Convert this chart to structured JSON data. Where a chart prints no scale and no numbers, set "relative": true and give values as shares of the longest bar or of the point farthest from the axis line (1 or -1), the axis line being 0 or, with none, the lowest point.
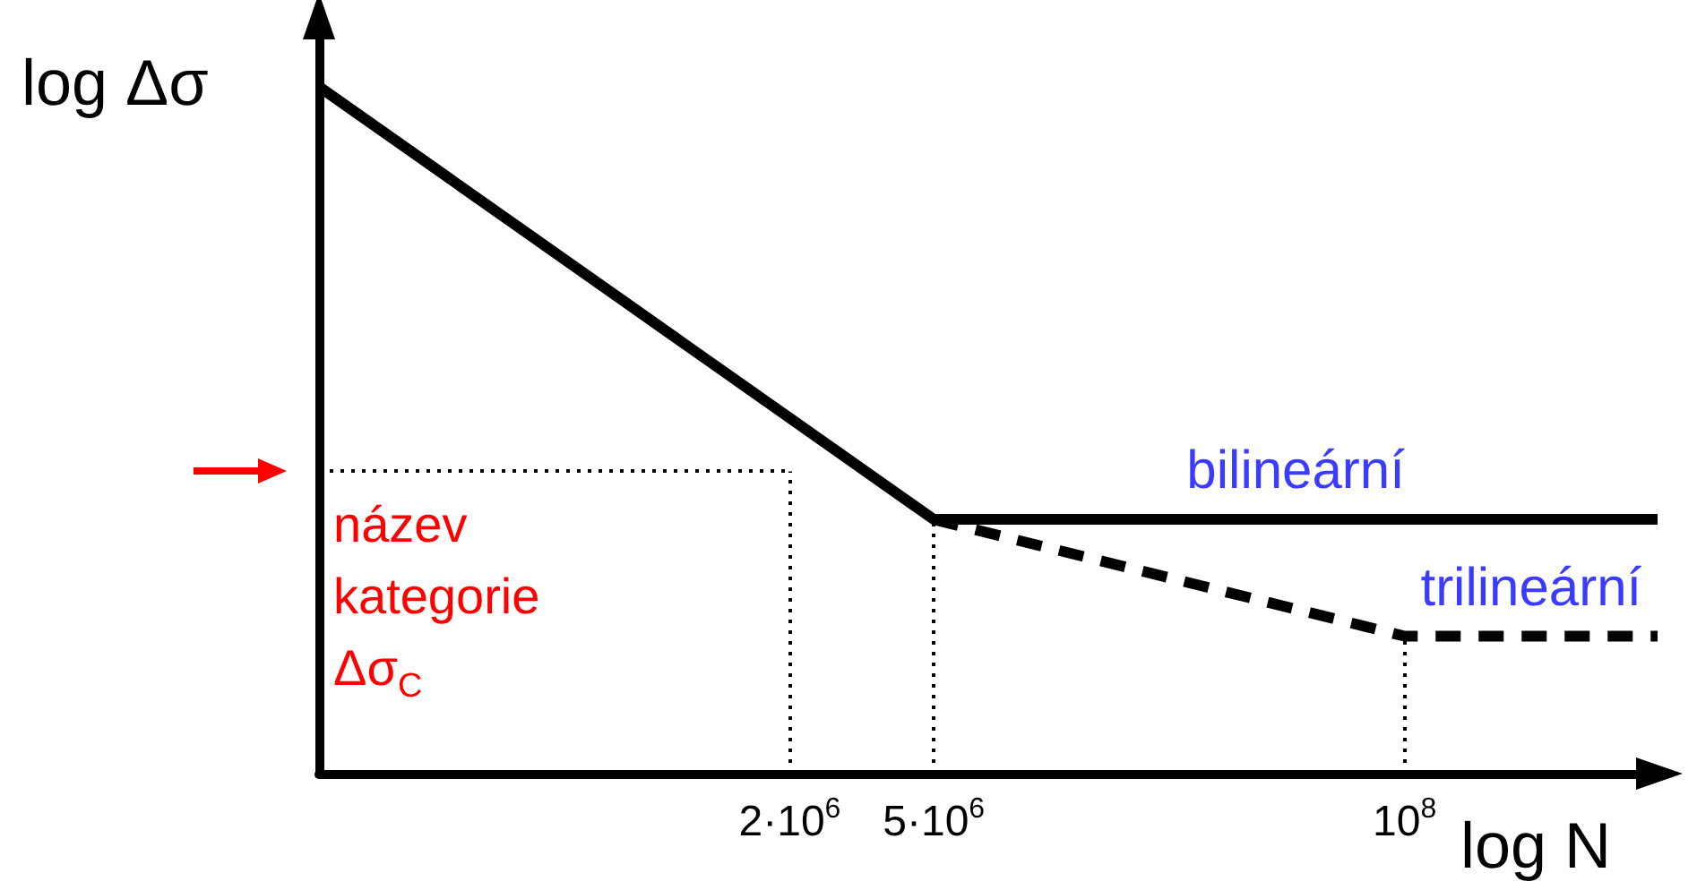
{
  "chart_data": {
    "type": "line",
    "xlabel": "log N",
    "ylabel": "log Δσ",
    "relative": true,
    "log": "x",
    "grid": false,
    "legend": false,
    "tick_labels": "x",
    "marker": "none",
    "xlim": [
      100000,
      500000000
    ],
    "xticks": [
      {
        "value": 2000000,
        "label": "2·10$^{6}$"
      },
      {
        "value": 5000000,
        "label": "5·10$^{6}$"
      },
      {
        "value": 100000000,
        "label": "10$^{8}$"
      }
    ],
    "series": [
      {
        "name": "bilineární",
        "color": "#000000",
        "line_style": "solid",
        "x": [
          100000,
          5000000,
          500000000
        ],
        "values": [
          1,
          0.37,
          0.37
        ]
      },
      {
        "name": "trilineární",
        "color": "#000000",
        "line_style": "dashed",
        "x": [
          5000000,
          100000000,
          500000000
        ],
        "values": [
          0.37,
          0.2,
          0.2
        ]
      }
    ],
    "ref_lines": [
      {
        "axis": "y",
        "value": 0.44,
        "label": "název\nkategorie\nΔσ$_{C}$",
        "line_style": "dotted"
      },
      {
        "axis": "x",
        "value": 2000000,
        "line_style": "dotted"
      },
      {
        "axis": "x",
        "value": 5000000,
        "line_style": "dotted"
      },
      {
        "axis": "x",
        "value": 100000000,
        "line_style": "dotted"
      }
    ]
  }
}
